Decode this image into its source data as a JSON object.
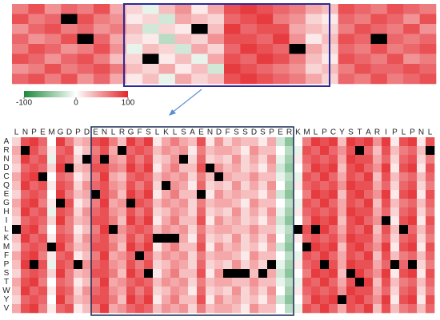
{
  "chart_data": [
    {
      "type": "heatmap",
      "clim": [
        -100,
        100
      ],
      "cticks": [
        -100,
        0,
        100
      ],
      "colors": [
        "#1b8a3a",
        "#ffffff",
        "#e3262b"
      ],
      "missing_color": "#000000",
      "values": [
        [
          60,
          80,
          50,
          70,
          60,
          80,
          40,
          20,
          -10,
          30,
          50,
          10,
          40,
          80,
          90,
          80,
          70,
          60,
          40,
          30,
          80,
          70,
          60,
          80,
          70,
          60
        ],
        [
          80,
          60,
          70,
          null,
          80,
          60,
          50,
          10,
          20,
          -20,
          40,
          30,
          20,
          70,
          80,
          90,
          60,
          50,
          20,
          10,
          70,
          60,
          80,
          70,
          50,
          80
        ],
        [
          50,
          70,
          80,
          60,
          70,
          50,
          60,
          30,
          -20,
          20,
          10,
          null,
          30,
          90,
          70,
          80,
          80,
          40,
          30,
          20,
          60,
          80,
          70,
          60,
          80,
          50
        ],
        [
          70,
          50,
          60,
          80,
          null,
          70,
          40,
          20,
          10,
          -30,
          30,
          20,
          50,
          80,
          80,
          70,
          90,
          50,
          10,
          30,
          80,
          70,
          null,
          70,
          60,
          70
        ],
        [
          60,
          80,
          70,
          50,
          60,
          80,
          50,
          -10,
          30,
          20,
          -20,
          40,
          20,
          70,
          90,
          80,
          70,
          null,
          40,
          20,
          70,
          60,
          80,
          60,
          70,
          80
        ],
        [
          80,
          70,
          50,
          70,
          80,
          60,
          30,
          20,
          null,
          10,
          30,
          -10,
          40,
          80,
          70,
          90,
          80,
          60,
          30,
          10,
          80,
          70,
          60,
          80,
          50,
          60
        ],
        [
          50,
          60,
          80,
          60,
          70,
          80,
          60,
          30,
          20,
          40,
          10,
          30,
          -20,
          90,
          80,
          70,
          60,
          50,
          20,
          30,
          60,
          80,
          70,
          70,
          80,
          70
        ],
        [
          70,
          80,
          60,
          80,
          50,
          70,
          40,
          10,
          30,
          -10,
          40,
          20,
          30,
          80,
          90,
          80,
          70,
          60,
          40,
          20,
          70,
          60,
          80,
          60,
          70,
          80
        ]
      ]
    },
    {
      "type": "heatmap",
      "clim": [
        -100,
        100
      ],
      "colors": [
        "#1b8a3a",
        "#ffffff",
        "#e3262b"
      ],
      "missing_color": "#000000",
      "x_categories": [
        "L",
        "N",
        "P",
        "E",
        "M",
        "G",
        "D",
        "P",
        "D",
        "E",
        "N",
        "L",
        "R",
        "G",
        "F",
        "S",
        "L",
        "K",
        "L",
        "S",
        "A",
        "E",
        "N",
        "D",
        "F",
        "S",
        "S",
        "D",
        "S",
        "P",
        "E",
        "R",
        "K",
        "M",
        "L",
        "P",
        "C",
        "Y",
        "S",
        "T",
        "A",
        "R",
        "I",
        "P",
        "L",
        "P",
        "N",
        "L"
      ],
      "y_categories": [
        "A",
        "R",
        "N",
        "D",
        "C",
        "Q",
        "E",
        "G",
        "H",
        "I",
        "L",
        "K",
        "M",
        "F",
        "P",
        "S",
        "T",
        "W",
        "Y",
        "V"
      ],
      "values": [
        [
          20,
          80,
          90,
          70,
          0,
          90,
          60,
          30,
          40,
          80,
          90,
          60,
          30,
          90,
          70,
          90,
          10,
          40,
          60,
          40,
          30,
          80,
          10,
          50,
          20,
          40,
          30,
          30,
          10,
          40,
          -20,
          -50,
          0,
          60,
          90,
          80,
          90,
          30,
          90,
          80,
          90,
          50,
          90,
          10,
          80,
          90,
          10,
          80
        ],
        [
          40,
          null,
          80,
          60,
          10,
          70,
          80,
          10,
          30,
          60,
          80,
          40,
          null,
          70,
          80,
          70,
          30,
          50,
          40,
          50,
          10,
          60,
          30,
          40,
          40,
          30,
          10,
          50,
          30,
          30,
          0,
          -30,
          -10,
          80,
          70,
          90,
          70,
          50,
          80,
          null,
          70,
          30,
          80,
          30,
          60,
          70,
          30,
          null
        ],
        [
          30,
          90,
          70,
          80,
          -10,
          80,
          70,
          20,
          null,
          70,
          null,
          50,
          40,
          80,
          60,
          80,
          20,
          30,
          50,
          null,
          20,
          70,
          20,
          30,
          20,
          50,
          20,
          40,
          20,
          50,
          -10,
          -40,
          10,
          70,
          80,
          70,
          80,
          40,
          90,
          80,
          80,
          40,
          70,
          20,
          70,
          80,
          20,
          60
        ],
        [
          20,
          70,
          80,
          70,
          20,
          90,
          null,
          30,
          40,
          80,
          80,
          60,
          50,
          90,
          70,
          90,
          10,
          40,
          60,
          30,
          30,
          80,
          null,
          50,
          30,
          40,
          20,
          30,
          10,
          40,
          -20,
          -50,
          0,
          60,
          90,
          80,
          90,
          30,
          80,
          90,
          70,
          50,
          90,
          10,
          80,
          90,
          10,
          80
        ],
        [
          40,
          80,
          90,
          null,
          0,
          70,
          60,
          10,
          30,
          60,
          90,
          40,
          30,
          70,
          80,
          70,
          30,
          50,
          40,
          50,
          20,
          60,
          30,
          null,
          40,
          30,
          30,
          50,
          30,
          30,
          -10,
          -30,
          -10,
          80,
          70,
          90,
          70,
          40,
          80,
          70,
          90,
          30,
          80,
          30,
          60,
          70,
          30,
          70
        ],
        [
          30,
          90,
          70,
          80,
          10,
          80,
          70,
          20,
          50,
          70,
          80,
          50,
          40,
          80,
          60,
          80,
          20,
          null,
          50,
          40,
          10,
          70,
          20,
          30,
          20,
          50,
          20,
          40,
          20,
          50,
          0,
          -40,
          10,
          70,
          80,
          70,
          80,
          50,
          90,
          80,
          80,
          40,
          70,
          20,
          70,
          80,
          20,
          60
        ],
        [
          20,
          70,
          80,
          70,
          0,
          90,
          60,
          30,
          40,
          null,
          80,
          60,
          30,
          90,
          70,
          90,
          10,
          40,
          60,
          30,
          30,
          null,
          10,
          50,
          30,
          40,
          30,
          30,
          10,
          40,
          -20,
          -50,
          0,
          60,
          90,
          80,
          90,
          30,
          80,
          90,
          70,
          50,
          90,
          10,
          80,
          90,
          10,
          80
        ],
        [
          40,
          80,
          90,
          60,
          10,
          null,
          80,
          10,
          30,
          60,
          90,
          40,
          50,
          null,
          80,
          70,
          30,
          50,
          40,
          50,
          20,
          60,
          30,
          40,
          40,
          30,
          10,
          50,
          30,
          30,
          0,
          -30,
          -10,
          80,
          70,
          90,
          70,
          40,
          80,
          70,
          90,
          30,
          80,
          30,
          60,
          70,
          30,
          70
        ],
        [
          30,
          90,
          70,
          80,
          -10,
          80,
          70,
          20,
          50,
          70,
          80,
          50,
          40,
          80,
          60,
          80,
          20,
          30,
          50,
          40,
          20,
          70,
          20,
          30,
          20,
          50,
          20,
          40,
          20,
          50,
          -10,
          -40,
          10,
          70,
          80,
          70,
          80,
          40,
          90,
          80,
          80,
          40,
          70,
          20,
          70,
          80,
          20,
          60
        ],
        [
          20,
          70,
          80,
          70,
          20,
          90,
          60,
          30,
          40,
          80,
          80,
          60,
          30,
          90,
          70,
          90,
          10,
          40,
          60,
          30,
          30,
          80,
          10,
          50,
          30,
          40,
          20,
          30,
          10,
          40,
          -20,
          -50,
          0,
          60,
          90,
          80,
          90,
          30,
          80,
          90,
          70,
          50,
          null,
          10,
          80,
          90,
          10,
          80
        ],
        [
          null,
          80,
          90,
          60,
          0,
          70,
          60,
          10,
          30,
          60,
          90,
          null,
          50,
          70,
          80,
          70,
          30,
          50,
          40,
          50,
          20,
          60,
          30,
          40,
          40,
          30,
          30,
          50,
          30,
          30,
          -10,
          -30,
          null,
          80,
          null,
          90,
          70,
          40,
          80,
          70,
          90,
          30,
          80,
          30,
          null,
          70,
          30,
          70
        ],
        [
          30,
          90,
          70,
          80,
          10,
          80,
          70,
          20,
          50,
          70,
          80,
          50,
          40,
          80,
          60,
          80,
          null,
          null,
          null,
          40,
          10,
          70,
          20,
          30,
          20,
          50,
          20,
          40,
          20,
          50,
          0,
          -40,
          10,
          70,
          80,
          70,
          80,
          50,
          90,
          80,
          80,
          40,
          70,
          20,
          70,
          80,
          20,
          60
        ],
        [
          20,
          70,
          80,
          70,
          null,
          90,
          60,
          30,
          40,
          80,
          80,
          60,
          30,
          90,
          70,
          90,
          10,
          40,
          60,
          30,
          30,
          80,
          10,
          50,
          30,
          40,
          20,
          30,
          10,
          40,
          -20,
          -50,
          0,
          null,
          90,
          80,
          90,
          30,
          80,
          90,
          70,
          50,
          90,
          10,
          80,
          90,
          10,
          80
        ],
        [
          40,
          80,
          90,
          60,
          10,
          70,
          80,
          10,
          30,
          60,
          90,
          40,
          50,
          70,
          null,
          70,
          30,
          50,
          40,
          50,
          20,
          60,
          30,
          40,
          40,
          30,
          10,
          50,
          30,
          30,
          0,
          -30,
          -10,
          80,
          70,
          90,
          70,
          40,
          80,
          70,
          90,
          30,
          80,
          30,
          60,
          70,
          30,
          70
        ],
        [
          30,
          90,
          null,
          80,
          -10,
          80,
          70,
          null,
          50,
          70,
          80,
          50,
          40,
          80,
          60,
          80,
          20,
          30,
          50,
          40,
          20,
          70,
          20,
          30,
          20,
          50,
          20,
          40,
          20,
          null,
          -10,
          -40,
          10,
          70,
          80,
          null,
          80,
          40,
          90,
          80,
          80,
          40,
          70,
          null,
          70,
          null,
          20,
          60
        ],
        [
          20,
          70,
          80,
          70,
          20,
          90,
          60,
          30,
          40,
          80,
          80,
          60,
          30,
          90,
          70,
          null,
          10,
          40,
          60,
          30,
          30,
          80,
          10,
          50,
          null,
          null,
          null,
          30,
          null,
          40,
          -20,
          -50,
          0,
          60,
          90,
          80,
          90,
          30,
          null,
          90,
          70,
          50,
          90,
          10,
          80,
          90,
          10,
          80
        ],
        [
          40,
          80,
          90,
          60,
          0,
          70,
          60,
          10,
          30,
          60,
          90,
          40,
          50,
          70,
          80,
          70,
          30,
          50,
          40,
          50,
          20,
          60,
          30,
          40,
          40,
          30,
          30,
          50,
          30,
          30,
          -10,
          -30,
          -10,
          80,
          70,
          90,
          70,
          40,
          80,
          null,
          90,
          30,
          80,
          30,
          60,
          70,
          30,
          70
        ],
        [
          30,
          90,
          70,
          80,
          10,
          80,
          70,
          20,
          50,
          70,
          80,
          50,
          40,
          80,
          60,
          80,
          20,
          30,
          50,
          40,
          10,
          70,
          20,
          30,
          20,
          50,
          20,
          40,
          20,
          50,
          0,
          -40,
          10,
          70,
          80,
          70,
          80,
          50,
          90,
          80,
          80,
          40,
          70,
          20,
          70,
          80,
          20,
          60
        ],
        [
          20,
          70,
          80,
          70,
          0,
          90,
          60,
          30,
          40,
          80,
          80,
          60,
          30,
          90,
          70,
          90,
          10,
          40,
          60,
          30,
          30,
          80,
          10,
          50,
          30,
          40,
          20,
          30,
          10,
          40,
          -20,
          -50,
          0,
          60,
          90,
          80,
          90,
          null,
          80,
          90,
          70,
          50,
          90,
          10,
          80,
          90,
          10,
          80
        ],
        [
          40,
          80,
          90,
          60,
          10,
          70,
          80,
          10,
          30,
          60,
          90,
          40,
          50,
          70,
          80,
          70,
          30,
          50,
          40,
          50,
          20,
          60,
          30,
          40,
          40,
          30,
          10,
          50,
          30,
          30,
          0,
          -30,
          -10,
          80,
          70,
          90,
          70,
          40,
          80,
          70,
          90,
          30,
          80,
          30,
          60,
          70,
          30,
          70
        ]
      ]
    }
  ]
}
